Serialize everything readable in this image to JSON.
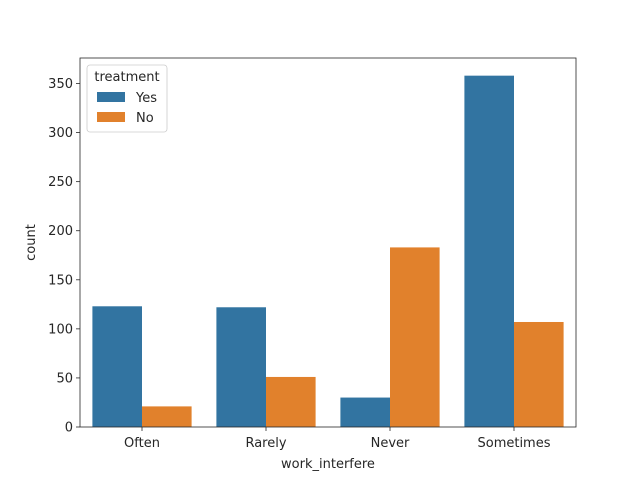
{
  "chart_data": {
    "type": "bar",
    "xlabel": "work_interfere",
    "ylabel": "count",
    "categories": [
      "Often",
      "Rarely",
      "Never",
      "Sometimes"
    ],
    "series": [
      {
        "name": "Yes",
        "values": [
          123,
          122,
          30,
          358
        ],
        "color": "#3274a1"
      },
      {
        "name": "No",
        "values": [
          21,
          51,
          183,
          107
        ],
        "color": "#e1812c"
      }
    ],
    "ylim": [
      0,
      376
    ],
    "yticks": [
      0,
      50,
      100,
      150,
      200,
      250,
      300,
      350
    ],
    "legend": {
      "title": "treatment",
      "placement": "top-left"
    },
    "grid": false
  }
}
